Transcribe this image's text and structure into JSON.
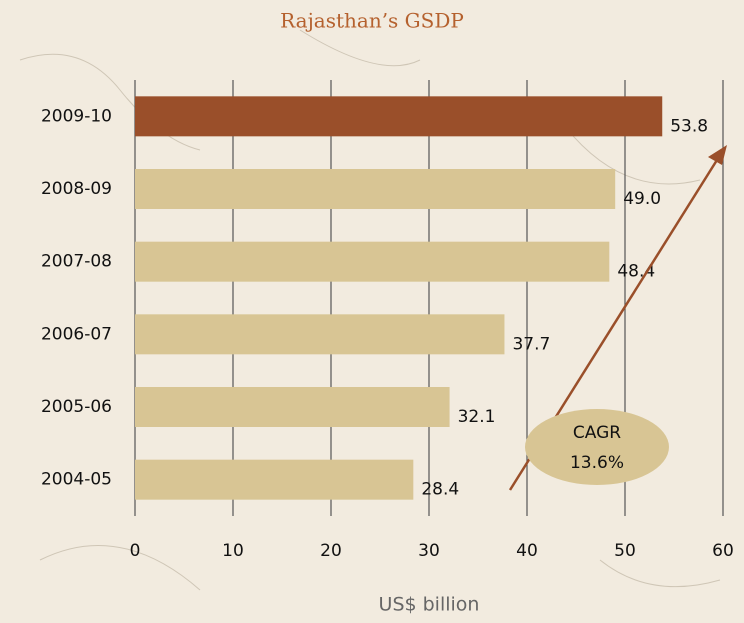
{
  "chart_data": {
    "type": "hbar",
    "title": "Rajasthan’s GSDP",
    "categories": [
      "2009-10",
      "2008-09",
      "2007-08",
      "2006-07",
      "2005-06",
      "2004-05"
    ],
    "values": [
      53.8,
      49.0,
      48.4,
      37.7,
      32.1,
      28.4
    ],
    "value_labels": [
      "53.8",
      "49.0",
      "48.4",
      "37.7",
      "32.1",
      "28.4"
    ],
    "colors": [
      "#9a4f2a",
      "#d8c594",
      "#d8c594",
      "#d8c594",
      "#d8c594",
      "#d8c594"
    ],
    "xlim": [
      0,
      60
    ],
    "xticks": [
      0,
      10,
      20,
      30,
      40,
      50,
      60
    ],
    "grid": true,
    "xlabel": "US$ billion",
    "annotations": [
      "CAGR",
      "13.6%"
    ]
  }
}
